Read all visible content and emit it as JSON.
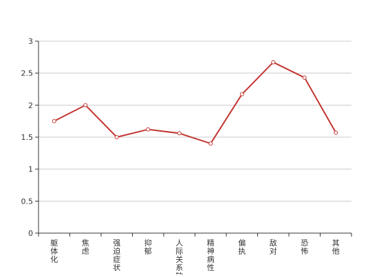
{
  "chart_data": {
    "type": "line",
    "title": "",
    "xlabel": "",
    "ylabel": "",
    "categories": [
      "躯体化",
      "焦虑",
      "强迫症状",
      "抑郁",
      "人际关系敏感",
      "精神病性",
      "偏执",
      "敌对",
      "恐怖",
      "其他"
    ],
    "series": [
      {
        "values": [
          1.75,
          2.0,
          1.5,
          1.62,
          1.56,
          1.4,
          2.17,
          2.67,
          2.43,
          1.57
        ],
        "color": "#c23531"
      }
    ],
    "ylim": [
      0,
      3
    ],
    "yticks": [
      "0",
      "0.5",
      "1",
      "1.5",
      "2",
      "2.5",
      "3"
    ],
    "grid": true,
    "legend": "none"
  }
}
